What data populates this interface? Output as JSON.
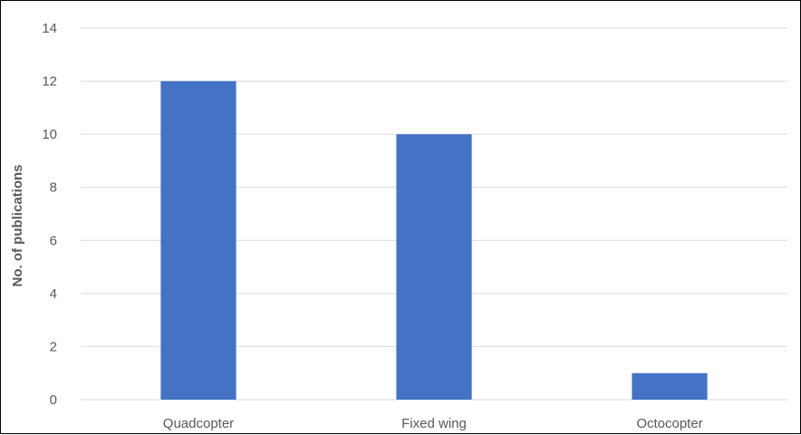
{
  "chart_data": {
    "type": "bar",
    "title": "",
    "xlabel": "",
    "ylabel": "No. of publications",
    "categories": [
      "Quadcopter",
      "Fixed wing",
      "Octocopter"
    ],
    "values": [
      12,
      10,
      1
    ],
    "ylim": [
      0,
      14
    ],
    "yticks": [
      0,
      2,
      4,
      6,
      8,
      10,
      12,
      14
    ],
    "grid": true,
    "legend": "none",
    "bar_color": "#4472C4",
    "grid_color": "#D9D9D9"
  }
}
